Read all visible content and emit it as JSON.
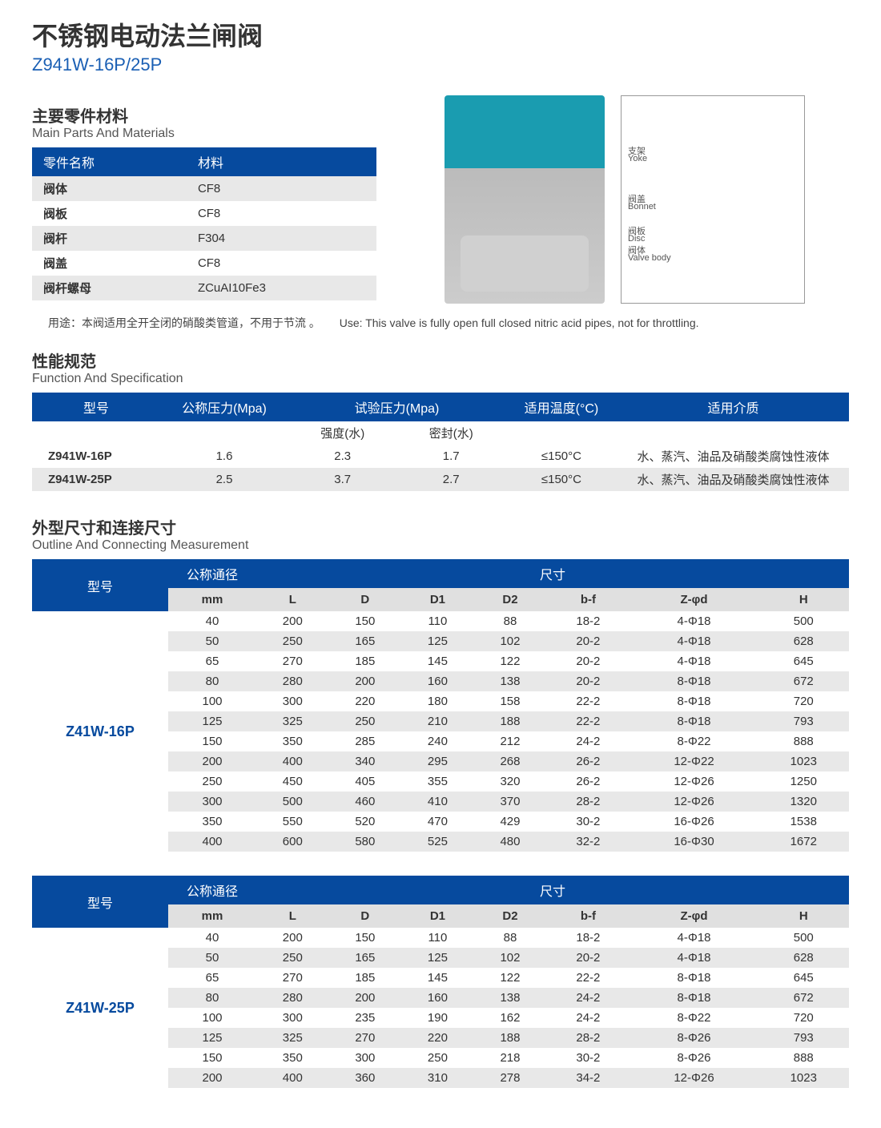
{
  "header": {
    "title_cn": "不锈钢电动法兰闸阀",
    "title_code": "Z941W-16P/25P"
  },
  "materials": {
    "heading_cn": "主要零件材料",
    "heading_en": "Main Parts And Materials",
    "col_part": "零件名称",
    "col_mat": "材料",
    "rows": [
      {
        "part": "阀体",
        "mat": "CF8"
      },
      {
        "part": "阀板",
        "mat": "CF8"
      },
      {
        "part": "阀杆",
        "mat": "F304"
      },
      {
        "part": "阀盖",
        "mat": "CF8"
      },
      {
        "part": "阀杆螺母",
        "mat": "ZCuAI10Fe3"
      }
    ]
  },
  "use": {
    "cn": "用途：本阀适用全开全闭的硝酸类管道，不用于节流 。",
    "en": "Use: This valve is fully open full closed nitric acid pipes, not for throttling."
  },
  "diagram_labels": {
    "yoke_cn": "支架",
    "yoke_en": "Yoke",
    "bonnet_cn": "阀盖",
    "bonnet_en": "Bonnet",
    "disc_cn": "阀板",
    "disc_en": "Disc",
    "body_cn": "阀体",
    "body_en": "Valve body"
  },
  "spec": {
    "heading_cn": "性能规范",
    "heading_en": "Function And Specification",
    "cols": {
      "model": "型号",
      "nominal_pressure": "公称压力(Mpa)",
      "test_pressure": "试验压力(Mpa)",
      "temp": "适用温度(°C)",
      "medium": "适用介质",
      "strength": "强度(水)",
      "seal": "密封(水)"
    },
    "rows": [
      {
        "model": "Z941W-16P",
        "np": "1.6",
        "str": "2.3",
        "seal": "1.7",
        "temp": "≤150°C",
        "medium": "水、蒸汽、油品及硝酸类腐蚀性液体"
      },
      {
        "model": "Z941W-25P",
        "np": "2.5",
        "str": "3.7",
        "seal": "2.7",
        "temp": "≤150°C",
        "medium": "水、蒸汽、油品及硝酸类腐蚀性液体"
      }
    ]
  },
  "dims": {
    "heading_cn": "外型尺寸和连接尺寸",
    "heading_en": "Outline And Connecting Measurement",
    "cols": {
      "model": "型号",
      "dn": "公称通径",
      "size": "尺寸",
      "mm": "mm",
      "L": "L",
      "D": "D",
      "D1": "D1",
      "D2": "D2",
      "bf": "b-f",
      "Zd": "Z-φd",
      "H": "H"
    },
    "groups": [
      {
        "model": "Z41W-16P",
        "rows": [
          [
            "40",
            "200",
            "150",
            "110",
            "88",
            "18-2",
            "4-Φ18",
            "500"
          ],
          [
            "50",
            "250",
            "165",
            "125",
            "102",
            "20-2",
            "4-Φ18",
            "628"
          ],
          [
            "65",
            "270",
            "185",
            "145",
            "122",
            "20-2",
            "4-Φ18",
            "645"
          ],
          [
            "80",
            "280",
            "200",
            "160",
            "138",
            "20-2",
            "8-Φ18",
            "672"
          ],
          [
            "100",
            "300",
            "220",
            "180",
            "158",
            "22-2",
            "8-Φ18",
            "720"
          ],
          [
            "125",
            "325",
            "250",
            "210",
            "188",
            "22-2",
            "8-Φ18",
            "793"
          ],
          [
            "150",
            "350",
            "285",
            "240",
            "212",
            "24-2",
            "8-Φ22",
            "888"
          ],
          [
            "200",
            "400",
            "340",
            "295",
            "268",
            "26-2",
            "12-Φ22",
            "1023"
          ],
          [
            "250",
            "450",
            "405",
            "355",
            "320",
            "26-2",
            "12-Φ26",
            "1250"
          ],
          [
            "300",
            "500",
            "460",
            "410",
            "370",
            "28-2",
            "12-Φ26",
            "1320"
          ],
          [
            "350",
            "550",
            "520",
            "470",
            "429",
            "30-2",
            "16-Φ26",
            "1538"
          ],
          [
            "400",
            "600",
            "580",
            "525",
            "480",
            "32-2",
            "16-Φ30",
            "1672"
          ]
        ]
      },
      {
        "model": "Z41W-25P",
        "rows": [
          [
            "40",
            "200",
            "150",
            "110",
            "88",
            "18-2",
            "4-Φ18",
            "500"
          ],
          [
            "50",
            "250",
            "165",
            "125",
            "102",
            "20-2",
            "4-Φ18",
            "628"
          ],
          [
            "65",
            "270",
            "185",
            "145",
            "122",
            "22-2",
            "8-Φ18",
            "645"
          ],
          [
            "80",
            "280",
            "200",
            "160",
            "138",
            "24-2",
            "8-Φ18",
            "672"
          ],
          [
            "100",
            "300",
            "235",
            "190",
            "162",
            "24-2",
            "8-Φ22",
            "720"
          ],
          [
            "125",
            "325",
            "270",
            "220",
            "188",
            "28-2",
            "8-Φ26",
            "793"
          ],
          [
            "150",
            "350",
            "300",
            "250",
            "218",
            "30-2",
            "8-Φ26",
            "888"
          ],
          [
            "200",
            "400",
            "360",
            "310",
            "278",
            "34-2",
            "12-Φ26",
            "1023"
          ]
        ]
      }
    ]
  },
  "colors": {
    "header_bg": "#064a9e",
    "accent": "#1a5fb4",
    "row_alt": "#e8e8e8"
  }
}
